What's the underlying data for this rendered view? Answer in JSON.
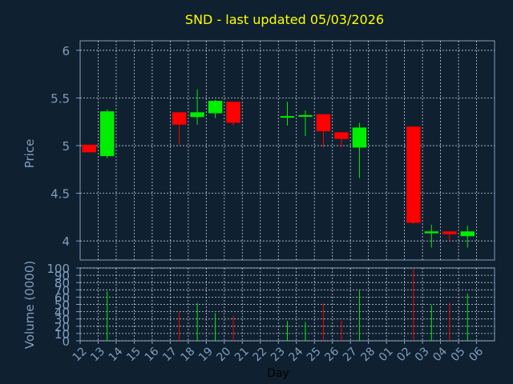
{
  "chart_data": [
    {
      "type": "candlestick",
      "title": "SND - last updated 05/03/2026",
      "ylabel": "Price",
      "ylim": [
        3.8,
        6.1
      ],
      "yticks": [
        4,
        4.5,
        5,
        5.5,
        6
      ],
      "ytick_labels": [
        "4",
        "4.5",
        "5",
        "5.5",
        "6"
      ],
      "grid": true,
      "up_color": "#00ee00",
      "down_color": "#ff0000",
      "x_labels": [
        "12",
        "13",
        "14",
        "15",
        "16",
        "17",
        "18",
        "19",
        "20",
        "21",
        "22",
        "23",
        "24",
        "25",
        "26",
        "27",
        "28",
        "01",
        "02",
        "03",
        "04",
        "05",
        "06"
      ],
      "candles": [
        {
          "day": "12",
          "open": 5.01,
          "high": 5.01,
          "low": 4.93,
          "close": 4.93
        },
        {
          "day": "13",
          "open": 4.89,
          "high": 5.38,
          "low": 4.87,
          "close": 5.36
        },
        {
          "day": "17",
          "open": 5.35,
          "high": 5.35,
          "low": 5.01,
          "close": 5.22
        },
        {
          "day": "18",
          "open": 5.3,
          "high": 5.59,
          "low": 5.22,
          "close": 5.35
        },
        {
          "day": "19",
          "open": 5.34,
          "high": 5.48,
          "low": 5.29,
          "close": 5.47
        },
        {
          "day": "20",
          "open": 5.46,
          "high": 5.46,
          "low": 5.21,
          "close": 5.24
        },
        {
          "day": "23",
          "open": 5.3,
          "high": 5.46,
          "low": 5.21,
          "close": 5.31
        },
        {
          "day": "24",
          "open": 5.31,
          "high": 5.37,
          "low": 5.1,
          "close": 5.32
        },
        {
          "day": "25",
          "open": 5.33,
          "high": 5.33,
          "low": 4.98,
          "close": 5.15
        },
        {
          "day": "26",
          "open": 5.14,
          "high": 5.14,
          "low": 4.98,
          "close": 5.07
        },
        {
          "day": "27",
          "open": 4.98,
          "high": 5.24,
          "low": 4.66,
          "close": 5.19
        },
        {
          "day": "02",
          "open": 5.2,
          "high": 5.2,
          "low": 4.18,
          "close": 4.19
        },
        {
          "day": "03",
          "open": 4.08,
          "high": 4.17,
          "low": 3.93,
          "close": 4.1
        },
        {
          "day": "04",
          "open": 4.1,
          "high": 4.1,
          "low": 4.0,
          "close": 4.07
        },
        {
          "day": "05",
          "open": 4.05,
          "high": 4.16,
          "low": 3.93,
          "close": 4.1
        }
      ]
    },
    {
      "type": "bar",
      "ylabel": "Volume (0000)",
      "xlabel": "Day",
      "ylim": [
        0,
        100
      ],
      "yticks": [
        0,
        10,
        20,
        30,
        40,
        50,
        60,
        70,
        80,
        90,
        100
      ],
      "ytick_labels": [
        "0",
        "10",
        "20",
        "30",
        "40",
        "50",
        "60",
        "70",
        "80",
        "90",
        "100"
      ],
      "bars": [
        {
          "day": "13",
          "value": 68,
          "direction": "up"
        },
        {
          "day": "17",
          "value": 40,
          "direction": "down"
        },
        {
          "day": "18",
          "value": 52,
          "direction": "up"
        },
        {
          "day": "19",
          "value": 38,
          "direction": "up"
        },
        {
          "day": "20",
          "value": 34,
          "direction": "down"
        },
        {
          "day": "23",
          "value": 27,
          "direction": "up"
        },
        {
          "day": "24",
          "value": 26,
          "direction": "up"
        },
        {
          "day": "25",
          "value": 52,
          "direction": "down"
        },
        {
          "day": "26",
          "value": 28,
          "direction": "down"
        },
        {
          "day": "27",
          "value": 69,
          "direction": "up"
        },
        {
          "day": "02",
          "value": 99,
          "direction": "down"
        },
        {
          "day": "03",
          "value": 49,
          "direction": "up"
        },
        {
          "day": "04",
          "value": 52,
          "direction": "down"
        },
        {
          "day": "05",
          "value": 65,
          "direction": "up"
        }
      ]
    }
  ]
}
